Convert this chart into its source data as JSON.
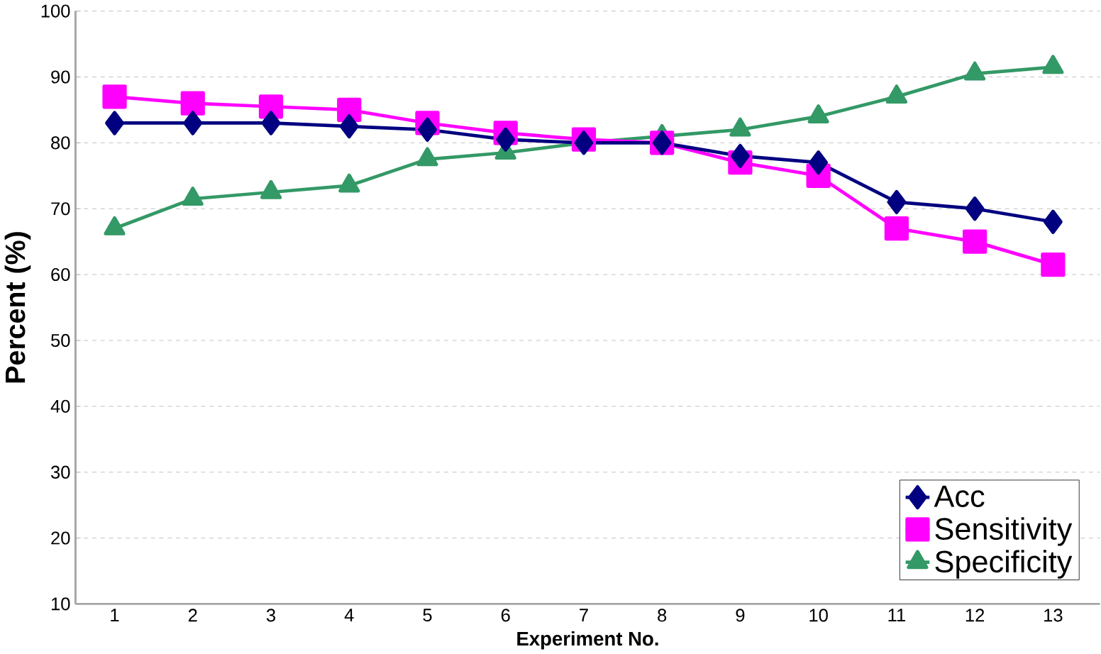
{
  "chart_data": {
    "type": "line",
    "xlabel": "Experiment No.",
    "ylabel": "Percent (%)",
    "categories": [
      "1",
      "2",
      "3",
      "4",
      "5",
      "6",
      "7",
      "8",
      "9",
      "10",
      "11",
      "12",
      "13"
    ],
    "series": [
      {
        "name": "Acc",
        "color": "#000080",
        "marker": "diamond",
        "values": [
          83,
          83,
          83,
          82.5,
          82,
          80.5,
          80,
          80,
          78,
          77,
          71,
          70,
          68
        ]
      },
      {
        "name": "Sensitivity",
        "color": "#ff00ff",
        "marker": "square",
        "values": [
          87,
          86,
          85.5,
          85,
          83,
          81.5,
          80.5,
          80,
          77,
          75,
          67,
          65,
          61.5
        ]
      },
      {
        "name": "Specificity",
        "color": "#339966",
        "marker": "triangle",
        "values": [
          67,
          71.5,
          72.5,
          73.5,
          77.5,
          78.5,
          80,
          81,
          82,
          84,
          87,
          90.5,
          91.5
        ]
      }
    ],
    "ylim": [
      10,
      100
    ],
    "yticks": [
      10,
      20,
      30,
      40,
      50,
      60,
      70,
      80,
      90,
      100
    ],
    "grid": "y",
    "legend": "bottom right",
    "line_style": "solid"
  }
}
